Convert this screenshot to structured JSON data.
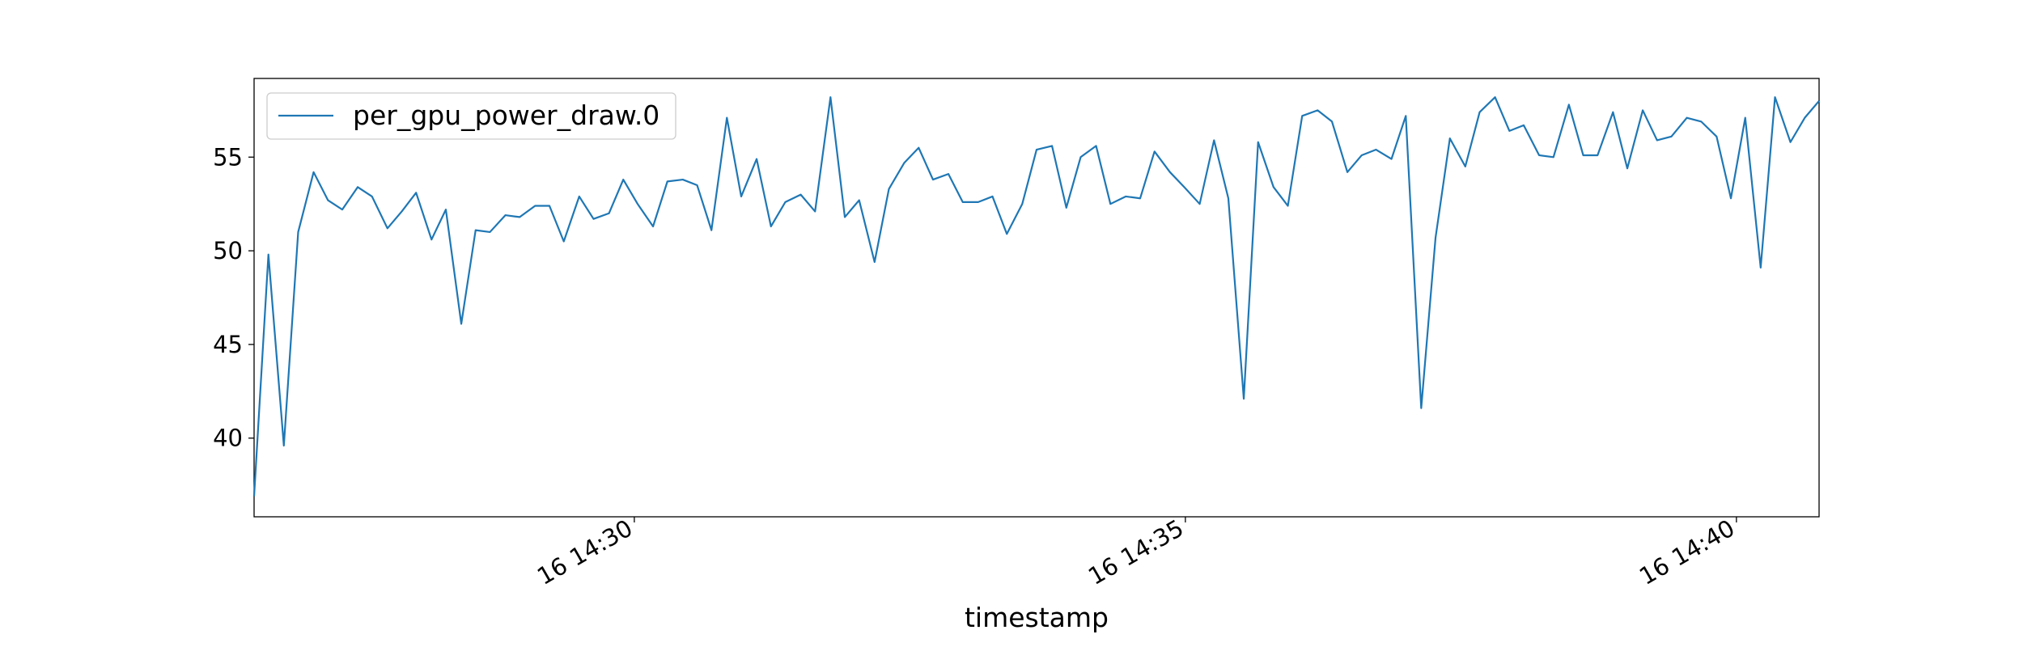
{
  "chart_data": {
    "type": "line",
    "xlabel": "timestamp",
    "xlim": [
      866.55,
      880.75
    ],
    "xticks": [
      {
        "value": 870,
        "label": "16 14:30"
      },
      {
        "value": 875,
        "label": "16 14:35"
      },
      {
        "value": 880,
        "label": "16 14:40"
      }
    ],
    "ylim": [
      35.8,
      59.2
    ],
    "yticks": [
      40,
      45,
      50,
      55
    ],
    "legend": "upper left",
    "x": [
      866.55,
      866.68,
      866.82,
      866.95,
      867.09,
      867.22,
      867.35,
      867.49,
      867.62,
      867.76,
      867.89,
      868.02,
      868.16,
      868.29,
      868.43,
      868.56,
      868.69,
      868.83,
      868.96,
      869.1,
      869.23,
      869.36,
      869.5,
      869.63,
      869.77,
      869.9,
      870.03,
      870.17,
      870.3,
      870.44,
      870.57,
      870.7,
      870.84,
      870.97,
      871.11,
      871.24,
      871.37,
      871.51,
      871.64,
      871.78,
      871.91,
      872.04,
      872.18,
      872.31,
      872.45,
      872.58,
      872.71,
      872.85,
      872.98,
      873.12,
      873.25,
      873.38,
      873.52,
      873.65,
      873.79,
      873.92,
      874.05,
      874.19,
      874.32,
      874.46,
      874.59,
      874.72,
      874.86,
      874.99,
      875.13,
      875.26,
      875.39,
      875.53,
      875.66,
      875.8,
      875.93,
      876.06,
      876.2,
      876.33,
      876.47,
      876.6,
      876.73,
      876.87,
      877.0,
      877.14,
      877.27,
      877.4,
      877.54,
      877.67,
      877.81,
      877.94,
      878.07,
      878.21,
      878.34,
      878.48,
      878.61,
      878.74,
      878.88,
      879.01,
      879.15,
      879.28,
      879.41,
      879.55,
      879.68,
      879.82,
      879.95,
      880.08,
      880.22,
      880.35,
      880.49,
      880.62,
      880.75
    ],
    "series": [
      {
        "name": "per_gpu_power_draw.0",
        "color": "#1f77b4",
        "values": [
          36.9,
          49.8,
          39.6,
          51.0,
          54.2,
          52.7,
          52.2,
          53.4,
          52.9,
          51.2,
          52.1,
          53.1,
          50.6,
          52.2,
          46.1,
          51.1,
          51.0,
          51.9,
          51.8,
          52.4,
          52.4,
          50.5,
          52.9,
          51.7,
          52.0,
          53.8,
          52.5,
          51.3,
          53.7,
          53.8,
          53.5,
          51.1,
          57.1,
          52.9,
          54.9,
          51.3,
          52.6,
          53.0,
          52.1,
          58.2,
          51.8,
          52.7,
          49.4,
          53.3,
          54.7,
          55.5,
          53.8,
          54.1,
          52.6,
          52.6,
          52.9,
          50.9,
          52.5,
          55.4,
          55.6,
          52.3,
          55.0,
          55.6,
          52.5,
          52.9,
          52.8,
          55.3,
          54.2,
          53.4,
          52.5,
          55.9,
          52.8,
          42.1,
          55.8,
          53.4,
          52.4,
          57.2,
          57.5,
          56.9,
          54.2,
          55.1,
          55.4,
          54.9,
          57.2,
          41.6,
          50.7,
          56.0,
          54.5,
          57.4,
          58.2,
          56.4,
          56.7,
          55.1,
          55.0,
          57.8,
          55.1,
          55.1,
          57.4,
          54.4,
          57.5,
          55.9,
          56.1,
          57.1,
          56.9,
          56.1,
          52.8,
          57.1,
          49.1,
          58.2,
          55.8,
          57.1,
          58.0
        ]
      }
    ]
  }
}
